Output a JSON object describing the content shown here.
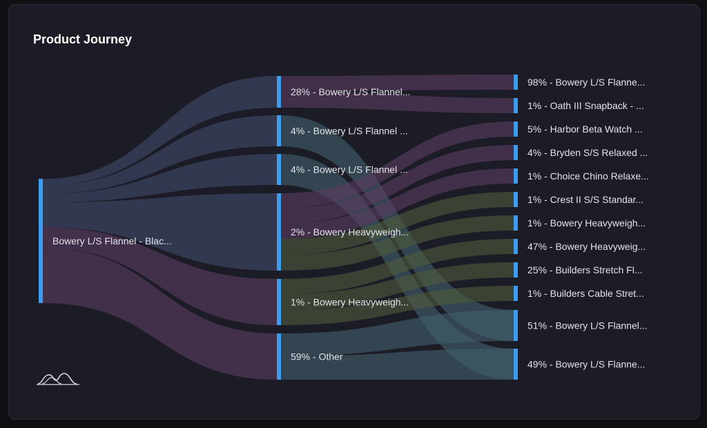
{
  "card": {
    "title": "Product Journey"
  },
  "colors": {
    "node": "#3b9cf0",
    "link_primary": "#3f4a6b",
    "link_purple": "#5a3b60",
    "link_green": "#4f5a3b",
    "link_teal": "#40606a"
  },
  "logo": {
    "icon": "mountain-logo-icon"
  },
  "chart_data": {
    "type": "sankey",
    "title": "Product Journey",
    "nodes": [
      {
        "id": "root",
        "label": "Bowery L/S Flannel - Blac...",
        "level": 0
      },
      {
        "id": "m1",
        "label": "28% - Bowery L/S Flannel...",
        "level": 1
      },
      {
        "id": "m2",
        "label": "4% - Bowery L/S Flannel ...",
        "level": 1
      },
      {
        "id": "m3",
        "label": "4% - Bowery L/S Flannel ...",
        "level": 1
      },
      {
        "id": "m4",
        "label": "2% - Bowery Heavyweigh...",
        "level": 1
      },
      {
        "id": "m5",
        "label": "1% - Bowery Heavyweigh...",
        "level": 1
      },
      {
        "id": "m6",
        "label": "59% - Other",
        "level": 1
      },
      {
        "id": "r1",
        "label": "98% - Bowery L/S Flanne...",
        "level": 2
      },
      {
        "id": "r2",
        "label": "1% - Oath III Snapback - ...",
        "level": 2
      },
      {
        "id": "r3",
        "label": "5% - Harbor Beta Watch ...",
        "level": 2
      },
      {
        "id": "r4",
        "label": "4% - Bryden S/S Relaxed ...",
        "level": 2
      },
      {
        "id": "r5",
        "label": "1% - Choice Chino Relaxe...",
        "level": 2
      },
      {
        "id": "r6",
        "label": "1% - Crest II S/S Standar...",
        "level": 2
      },
      {
        "id": "r7",
        "label": "1% - Bowery Heavyweigh...",
        "level": 2
      },
      {
        "id": "r8",
        "label": "47% - Bowery Heavyweig...",
        "level": 2
      },
      {
        "id": "r9",
        "label": "25% - Builders Stretch Fl...",
        "level": 2
      },
      {
        "id": "r10",
        "label": "1% - Builders Cable Stret...",
        "level": 2
      },
      {
        "id": "r11",
        "label": "51% - Bowery L/S Flannel...",
        "level": 2
      },
      {
        "id": "r12",
        "label": "49% - Bowery L/S Flanne...",
        "level": 2
      }
    ],
    "links": [
      {
        "source": "root",
        "target": "m1",
        "color": "link_primary"
      },
      {
        "source": "root",
        "target": "m2",
        "color": "link_primary"
      },
      {
        "source": "root",
        "target": "m3",
        "color": "link_primary"
      },
      {
        "source": "root",
        "target": "m4",
        "color": "link_primary"
      },
      {
        "source": "root",
        "target": "m5",
        "color": "link_purple"
      },
      {
        "source": "root",
        "target": "m6",
        "color": "link_purple"
      },
      {
        "source": "m1",
        "target": "r1",
        "color": "link_purple"
      },
      {
        "source": "m1",
        "target": "r2",
        "color": "link_purple"
      },
      {
        "source": "m2",
        "target": "r11",
        "color": "link_teal"
      },
      {
        "source": "m3",
        "target": "r12",
        "color": "link_teal"
      },
      {
        "source": "m4",
        "target": "r3",
        "color": "link_purple"
      },
      {
        "source": "m4",
        "target": "r4",
        "color": "link_purple"
      },
      {
        "source": "m4",
        "target": "r5",
        "color": "link_purple"
      },
      {
        "source": "m4",
        "target": "r6",
        "color": "link_green"
      },
      {
        "source": "m4",
        "target": "r7",
        "color": "link_green"
      },
      {
        "source": "m5",
        "target": "r8",
        "color": "link_green"
      },
      {
        "source": "m5",
        "target": "r9",
        "color": "link_green"
      },
      {
        "source": "m5",
        "target": "r10",
        "color": "link_green"
      },
      {
        "source": "m6",
        "target": "r11",
        "color": "link_teal"
      },
      {
        "source": "m6",
        "target": "r12",
        "color": "link_teal"
      }
    ]
  }
}
